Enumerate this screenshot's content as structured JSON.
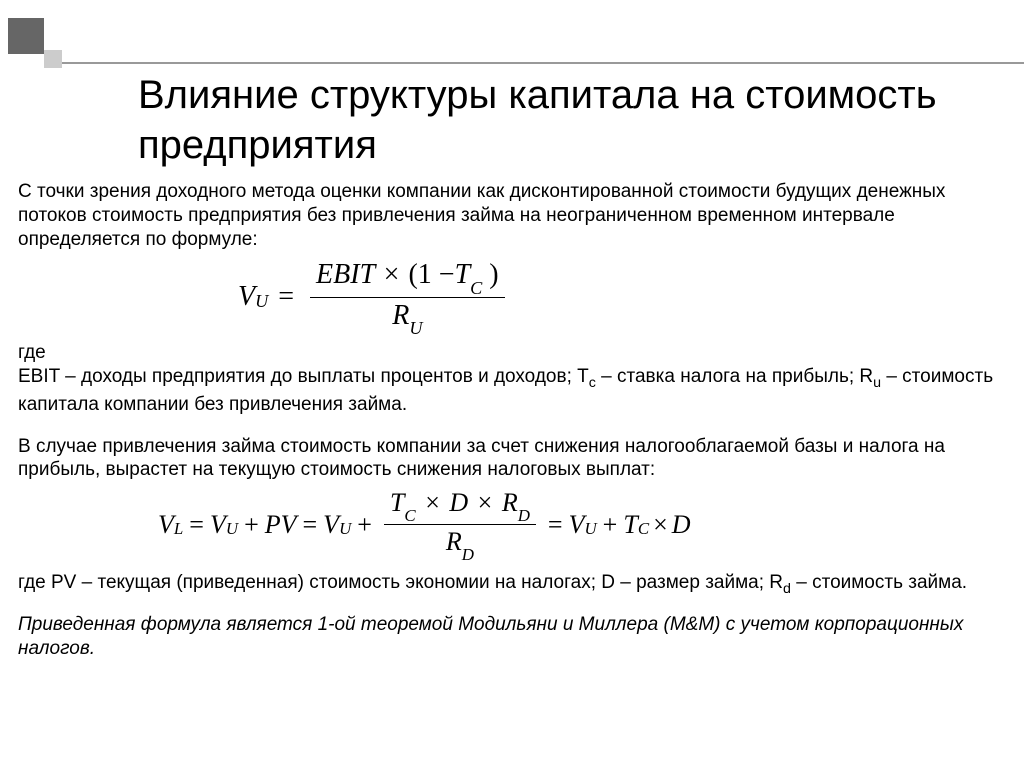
{
  "slide": {
    "title": "Влияние структуры капитала на стоимость предприятия",
    "intro": "С точки зрения доходного метода оценки компании как дисконтированной стоимости будущих денежных потоков стоимость предприятия без привлечения займа на неограниченном временном интервале определяется по формуле:",
    "where_label": "где",
    "defs1": "EBIT – доходы предприятия до выплаты процентов и доходов; Tc – ставка налога на прибыль; Ru – стоимость капитала компании без привлечения займа.",
    "para2": "В случае привлечения займа стоимость компании за счет снижения налогооблагаемой базы и налога на прибыль, вырастет на текущую стоимость снижения налоговых выплат:",
    "defs2": "где PV – текущая (приведенная) стоимость экономии на налогах; D – размер займа; Rd – стоимость займа.",
    "footnote": "Приведенная формула является 1-ой теоремой Модильяни и Миллера (M&M) с учетом корпорационных налогов.",
    "formula1": {
      "lhs_var": "V",
      "lhs_sub": "U",
      "eq": "=",
      "num_a": "EBIT",
      "num_op": "×",
      "num_b_open": "(1 −",
      "num_b_var": "T",
      "num_b_sub": "C",
      "num_b_close": ")",
      "den_var": "R",
      "den_sub": "U"
    },
    "formula2": {
      "lhs_var": "V",
      "lhs_sub": "L",
      "eq": "=",
      "t1_var": "V",
      "t1_sub": "U",
      "plus": "+",
      "t2": "PV",
      "t3_var": "V",
      "t3_sub": "U",
      "frac_num_a_var": "T",
      "frac_num_a_sub": "C",
      "times": "×",
      "frac_num_b": "D",
      "frac_num_c_var": "R",
      "frac_num_c_sub": "D",
      "frac_den_var": "R",
      "frac_den_sub": "D",
      "t4_var": "V",
      "t4_sub": "U",
      "t5_var": "T",
      "t5_sub": "C",
      "t6": "D"
    },
    "styling": {
      "background_color": "#ffffff",
      "text_color": "#000000",
      "title_fontsize": 40,
      "body_fontsize": 19,
      "formula_fontsize": 28,
      "accent_square_color": "#666666",
      "accent_square2_color": "#cccccc",
      "divider_color": "#999999",
      "body_font": "Arial",
      "formula_font": "Times New Roman"
    }
  }
}
